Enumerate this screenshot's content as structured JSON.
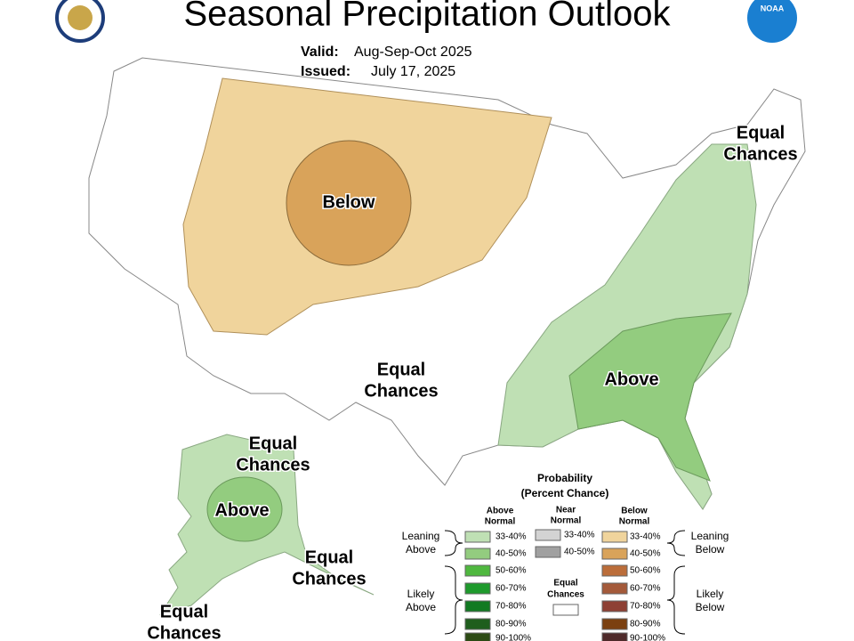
{
  "title": "Seasonal Precipitation Outlook",
  "valid": {
    "label": "Valid:",
    "value": "Aug-Sep-Oct 2025"
  },
  "issued": {
    "label": "Issued:",
    "value": "July 17, 2025"
  },
  "logo_text": "NOAA",
  "map_labels": [
    {
      "lines": [
        "Below"
      ]
    },
    {
      "lines": [
        "Equal",
        "Chances"
      ]
    },
    {
      "lines": [
        "Equal",
        "Chances"
      ]
    },
    {
      "lines": [
        "Above"
      ]
    },
    {
      "lines": [
        "Equal",
        "Chances"
      ]
    },
    {
      "lines": [
        "Above"
      ]
    },
    {
      "lines": [
        "Equal",
        "Chances"
      ]
    },
    {
      "lines": [
        "Equal",
        "Chances"
      ]
    }
  ],
  "legend": {
    "title": "Probability",
    "subtitle": "(Percent Chance)",
    "columns": [
      [
        "Above",
        "Normal"
      ],
      [
        "Near",
        "Normal"
      ],
      [
        "Below",
        "Normal"
      ]
    ],
    "above": [
      "33-40%",
      "40-50%",
      "50-60%",
      "60-70%",
      "70-80%",
      "80-90%",
      "90-100%"
    ],
    "near": [
      "33-40%",
      "40-50%"
    ],
    "below": [
      "33-40%",
      "40-50%",
      "50-60%",
      "60-70%",
      "70-80%",
      "80-90%",
      "90-100%"
    ],
    "equal": [
      "Equal",
      "Chances"
    ],
    "groups": [
      [
        "Leaning",
        "Above"
      ],
      [
        "Likely",
        "Above"
      ],
      [
        "Leaning",
        "Below"
      ],
      [
        "Likely",
        "Below"
      ]
    ]
  }
}
